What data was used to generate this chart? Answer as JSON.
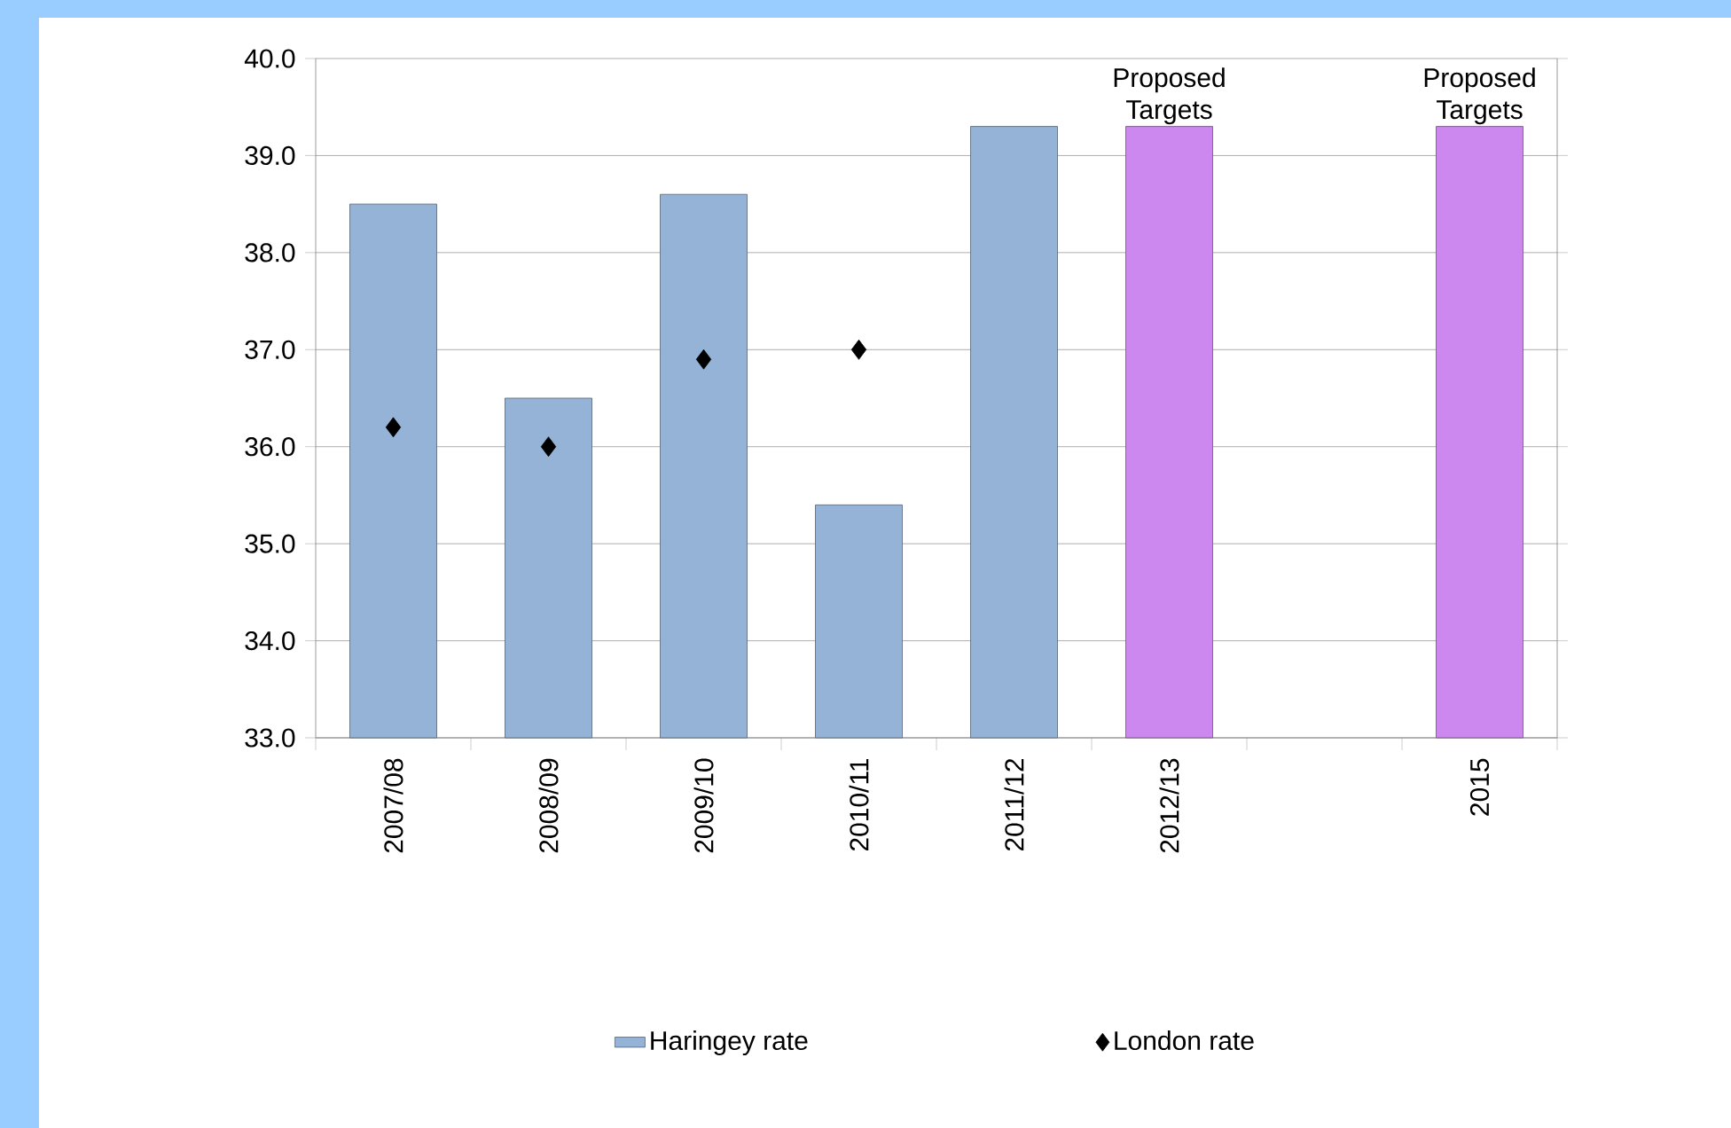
{
  "chart_data": {
    "type": "bar",
    "categories": [
      "2007/08",
      "2008/09",
      "2009/10",
      "2010/11",
      "2011/12",
      "2012/13",
      null,
      "2015"
    ],
    "series": [
      {
        "name": "Haringey rate",
        "color": "#95b3d7",
        "colors": [
          "#95b3d7",
          "#95b3d7",
          "#95b3d7",
          "#95b3d7",
          "#95b3d7",
          "#cc88ee",
          "#cc88ee",
          "#cc88ee"
        ],
        "values": [
          38.5,
          36.5,
          38.6,
          35.4,
          39.3,
          39.3,
          null,
          39.3
        ]
      },
      {
        "name": "London rate",
        "type": "scatter",
        "color": "#000000",
        "marker": "diamond",
        "values": [
          36.2,
          36.0,
          36.9,
          37.0,
          null,
          null,
          null,
          null
        ]
      }
    ],
    "ylim": [
      33,
      40
    ],
    "yticks": [
      {
        "value": 33,
        "label": "33.0"
      },
      {
        "value": 34,
        "label": "34.0"
      },
      {
        "value": 35,
        "label": "35.0"
      },
      {
        "value": 36,
        "label": "36.0"
      },
      {
        "value": 37,
        "label": "37.0"
      },
      {
        "value": 38,
        "label": "38.0"
      },
      {
        "value": 39,
        "label": "39.0"
      },
      {
        "value": 40,
        "label": "40.0"
      }
    ],
    "grid": "y",
    "legend": "bottom",
    "annotations": [
      {
        "text": "Proposed Targets",
        "x": "2012/13",
        "y": 39.3
      },
      {
        "text": "Proposed Targets",
        "x": "2015",
        "y": 39.3
      }
    ]
  }
}
